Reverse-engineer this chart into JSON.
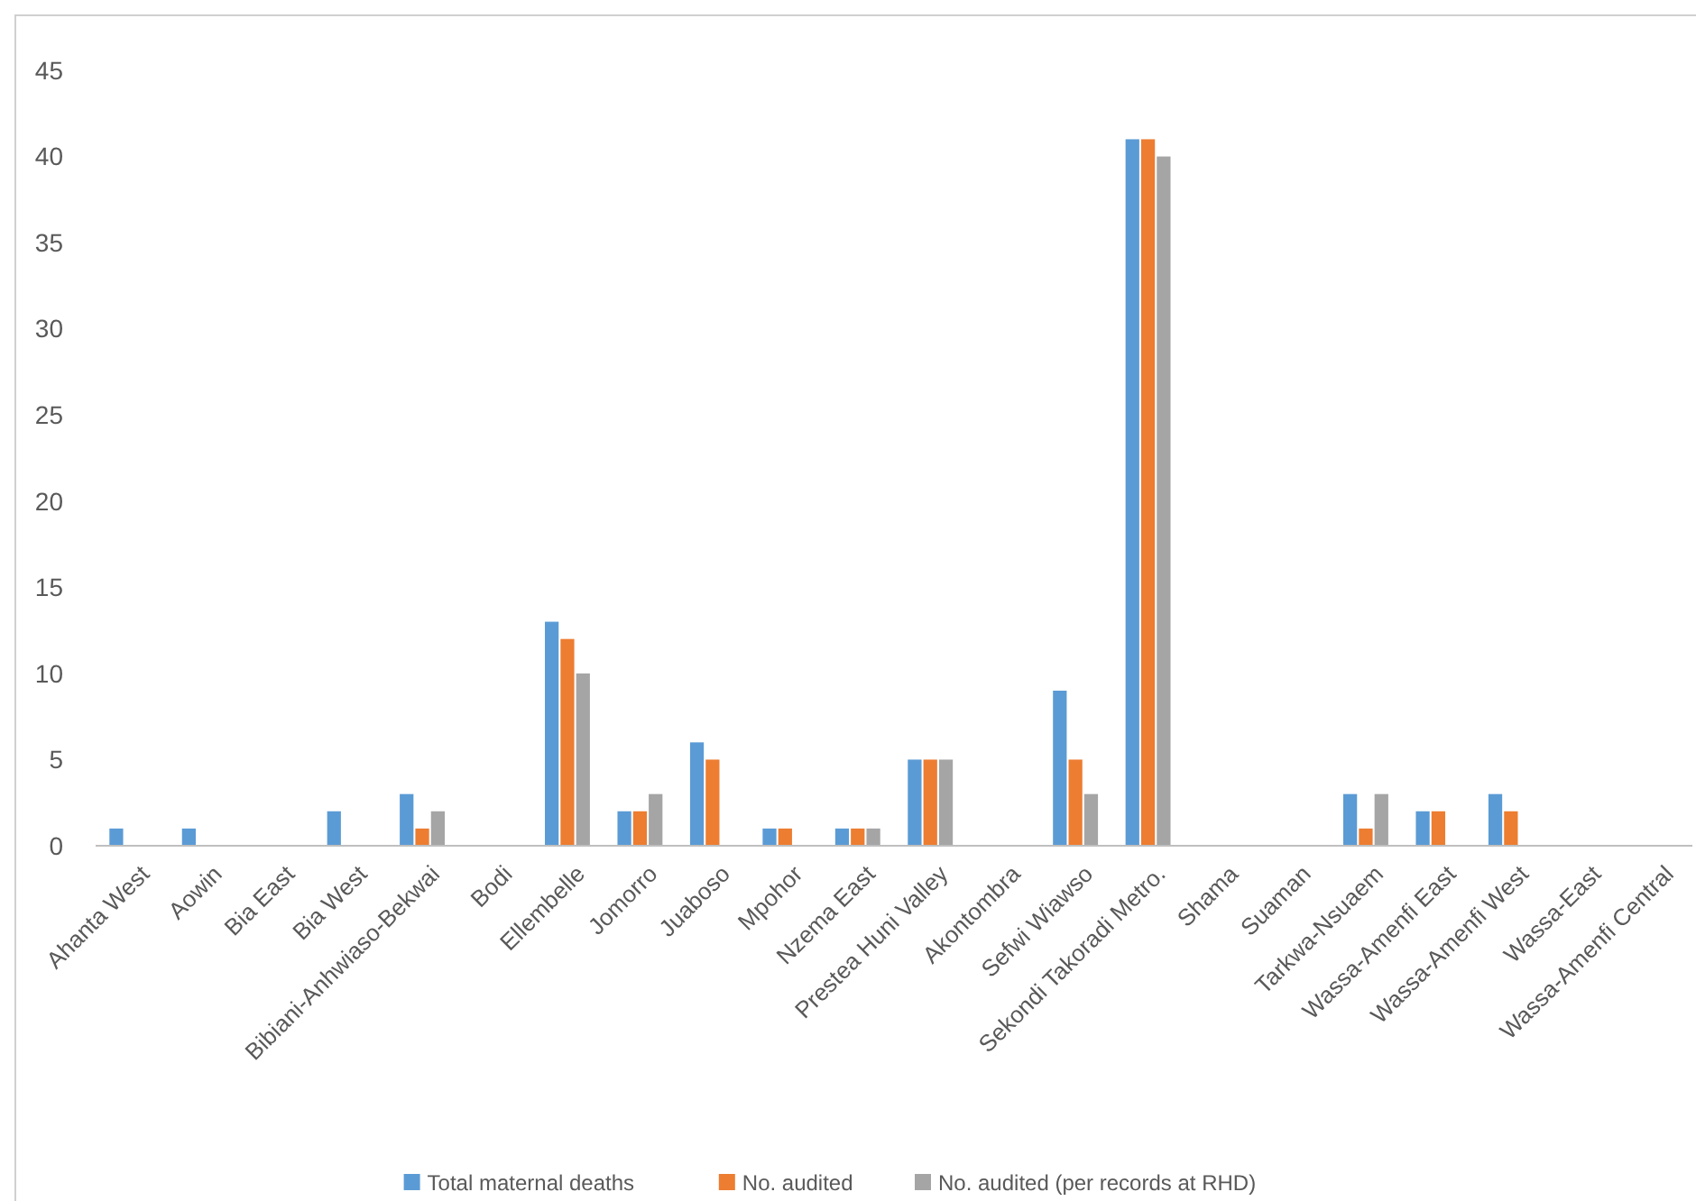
{
  "chart_data": {
    "type": "bar",
    "categories": [
      "Ahanta West",
      "Aowin",
      "Bia East",
      "Bia West",
      "Bibiani-Anhwiaso-Bekwai",
      "Bodi",
      "Ellembelle",
      "Jomorro",
      "Juaboso",
      "Mpohor",
      "Nzema East",
      "Prestea Huni Valley",
      "Akontombra",
      "Sefwi Wiawso",
      "Sekondi Takoradi Metro.",
      "Shama",
      "Suaman",
      "Tarkwa-Nsuaem",
      "Wassa-Amenfi East",
      "Wassa-Amenfi West",
      "Wassa-East",
      "Wassa-Amenfi Central"
    ],
    "series": [
      {
        "name": "Total maternal deaths",
        "color": "#5b9bd5",
        "values": [
          1,
          1,
          0,
          2,
          3,
          0,
          13,
          2,
          6,
          1,
          1,
          5,
          0,
          9,
          41,
          0,
          0,
          3,
          2,
          3,
          0,
          0
        ]
      },
      {
        "name": "No. audited",
        "color": "#ed7d31",
        "values": [
          0,
          0,
          0,
          0,
          1,
          0,
          12,
          2,
          5,
          1,
          1,
          5,
          0,
          5,
          41,
          0,
          0,
          1,
          2,
          2,
          0,
          0
        ]
      },
      {
        "name": "No. audited (per records at RHD)",
        "color": "#a5a5a5",
        "values": [
          0,
          0,
          0,
          0,
          2,
          0,
          10,
          3,
          0,
          0,
          1,
          5,
          0,
          3,
          40,
          0,
          0,
          3,
          0,
          0,
          0,
          0
        ]
      }
    ],
    "ylim": [
      0,
      45
    ],
    "yticks": [
      0,
      5,
      10,
      15,
      20,
      25,
      30,
      35,
      40,
      45
    ],
    "grid": false,
    "legend": "bottom"
  }
}
